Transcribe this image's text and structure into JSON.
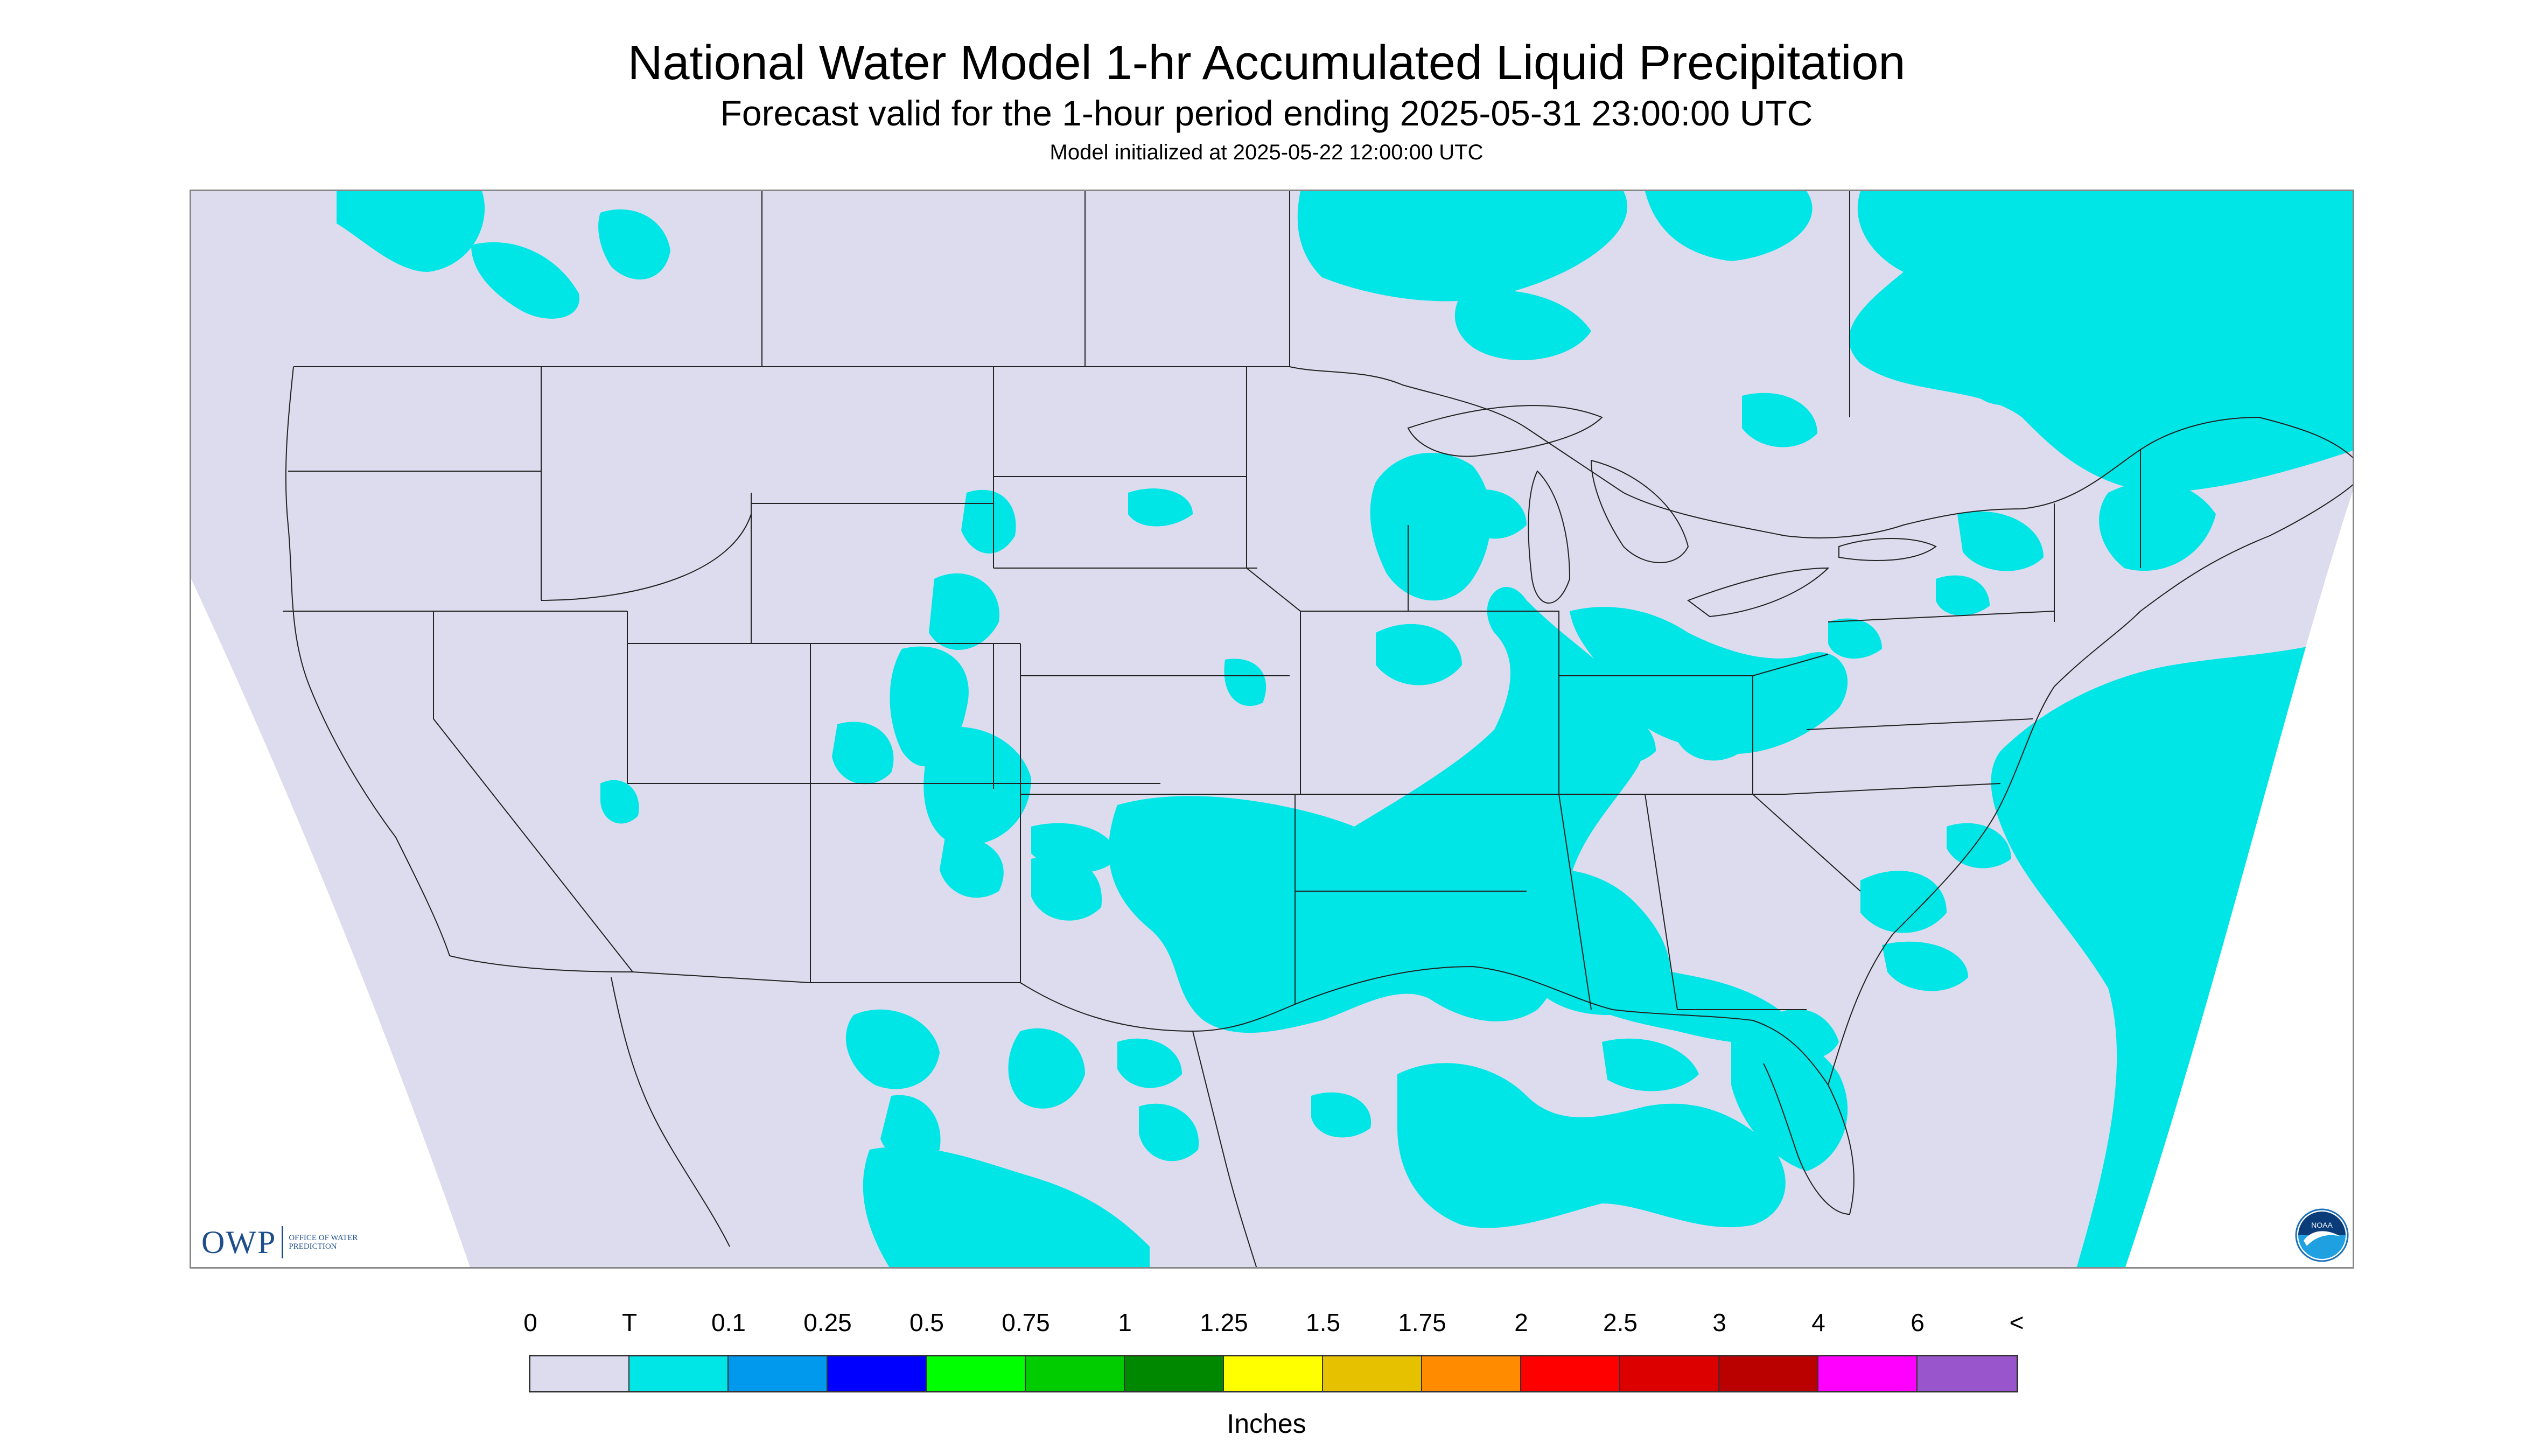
{
  "header": {
    "title": "National Water Model 1-hr Accumulated Liquid Precipitation",
    "subtitle": "Forecast valid for the 1-hour period ending 2025-05-31 23:00:00 UTC",
    "initialized": "Model initialized at 2025-05-22 12:00:00 UTC"
  },
  "map": {
    "region": "Continental United States",
    "background_color": "#dcdcee",
    "precip_color": "#00e5e5",
    "outside_domain_color": "#ffffff"
  },
  "branding": {
    "owp_mark": "OWP",
    "owp_text": "OFFICE OF WATER PREDICTION",
    "noaa_text": "NOAA",
    "noaa_icon": "noaa-logo-icon"
  },
  "legend": {
    "labels": [
      "0",
      "T",
      "0.1",
      "0.25",
      "0.5",
      "0.75",
      "1",
      "1.25",
      "1.5",
      "1.75",
      "2",
      "2.5",
      "3",
      "4",
      "6",
      "<"
    ],
    "colors": [
      "#dcdcee",
      "#00e5e5",
      "#0099ee",
      "#0000ff",
      "#00ff00",
      "#00cc00",
      "#008800",
      "#ffff00",
      "#e6c100",
      "#ff8c00",
      "#ff0000",
      "#dd0000",
      "#bb0000",
      "#ff00ff",
      "#9955cc"
    ],
    "units": "Inches"
  }
}
